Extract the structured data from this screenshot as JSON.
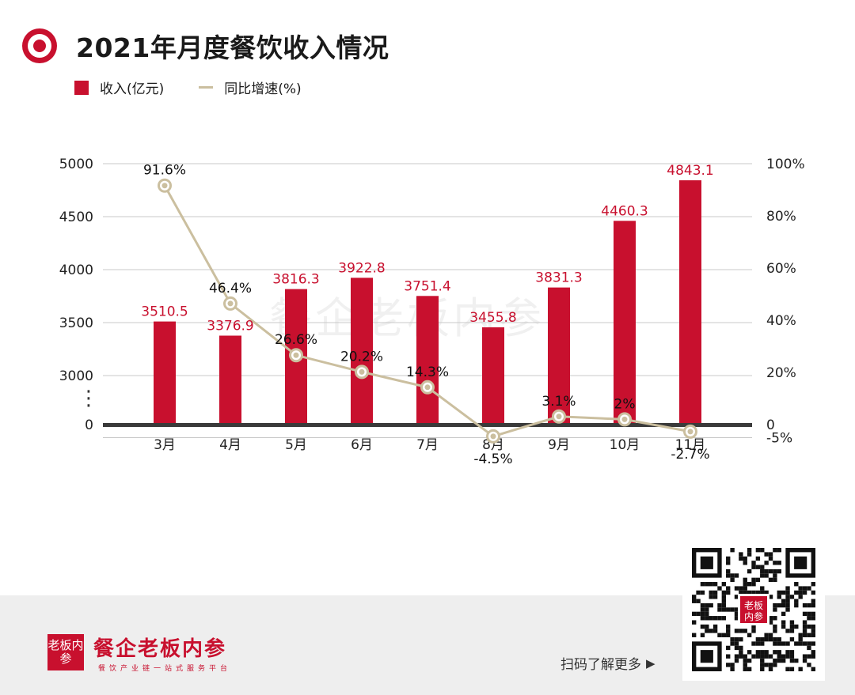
{
  "title": "2021年月度餐饮收入情况",
  "legend": {
    "bar_label": "收入(亿元)",
    "line_label": "同比增速(%)"
  },
  "colors": {
    "bar": "#c8102e",
    "line": "#cbbf9f",
    "accent": "#c8102e"
  },
  "watermark": "餐企老板内参",
  "chart_data": {
    "type": "bar",
    "categories": [
      "3月",
      "4月",
      "5月",
      "6月",
      "7月",
      "8月",
      "9月",
      "10月",
      "11月"
    ],
    "series": [
      {
        "name": "收入(亿元)",
        "axis": "left",
        "type": "bar",
        "values": [
          3510.5,
          3376.9,
          3816.3,
          3922.8,
          3751.4,
          3455.8,
          3831.3,
          4460.3,
          4843.1
        ],
        "labels": [
          "3510.5",
          "3376.9",
          "3816.3",
          "3922.8",
          "3751.4",
          "3455.8",
          "3831.3",
          "4460.3",
          "4843.1"
        ]
      },
      {
        "name": "同比增速(%)",
        "axis": "right",
        "type": "line",
        "values": [
          91.6,
          46.4,
          26.6,
          20.2,
          14.3,
          -4.5,
          3.1,
          2,
          -2.7
        ],
        "labels": [
          "91.6%",
          "46.4%",
          "26.6%",
          "20.2%",
          "14.3%",
          "-4.5%",
          "3.1%",
          "2%",
          "-2.7%"
        ]
      }
    ],
    "left_axis": {
      "ticks": [
        "0",
        "3000",
        "3500",
        "4000",
        "4500",
        "5000"
      ],
      "break_marker": "⋮",
      "broken": true,
      "range_after_break": [
        3000,
        5000
      ]
    },
    "right_axis": {
      "ticks": [
        "-5%",
        "0",
        "20%",
        "40%",
        "60%",
        "80%",
        "100%"
      ],
      "ylim": [
        -5,
        100
      ]
    },
    "grid": true
  },
  "footer": {
    "logo_text": "老板内参",
    "brand": "餐企老板内参",
    "slogan": "餐饮产业链一站式服务平台",
    "scan_text": "扫码了解更多",
    "qr_logo_text": "老板内参"
  }
}
